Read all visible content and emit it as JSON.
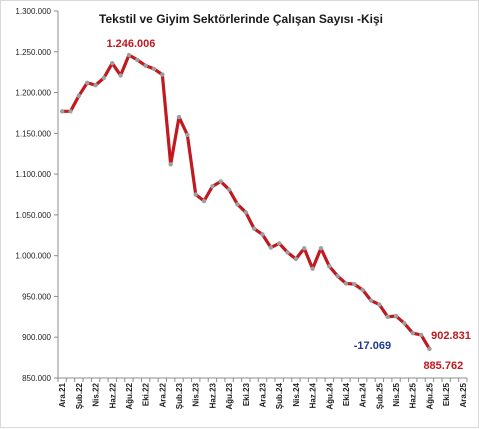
{
  "chart_data": {
    "type": "line",
    "title": "Tekstil ve Giyim Sektörlerinde  Çalışan Sayısı -Kişi",
    "xlabel": "",
    "ylabel": "",
    "ylim": [
      850000,
      1300000
    ],
    "yticks": [
      850000,
      900000,
      950000,
      1000000,
      1050000,
      1100000,
      1150000,
      1200000,
      1250000,
      1300000
    ],
    "ytick_labels": [
      "850.000",
      "900.000",
      "950.000",
      "1.000.000",
      "1.050.000",
      "1.100.000",
      "1.150.000",
      "1.200.000",
      "1.250.000",
      "1.300.000"
    ],
    "x_tick_labels": [
      "Ara.21",
      "Şub.22",
      "Nis.22",
      "Haz.22",
      "Ağu.22",
      "Eki.22",
      "Ara.22",
      "Şub.23",
      "Nis.23",
      "Haz.23",
      "Ağu.23",
      "Eki.23",
      "Ara.23",
      "Şub.24",
      "Nis.24",
      "Haz.24",
      "Ağu.24",
      "Eki.24",
      "Ara.24",
      "Şub.25",
      "Nis.25",
      "Haz.25",
      "Ağu.25",
      "Eki.25",
      "Ara.25"
    ],
    "grid": false,
    "legend": "none",
    "line_color": "#c0191f",
    "marker_color": "#9e9e9e",
    "series": [
      {
        "values": [
          1177000,
          1177000,
          1196000,
          1212000,
          1209000,
          1218000,
          1236000,
          1221000,
          1246006,
          1240000,
          1233000,
          1229000,
          1222000,
          1112000,
          1170000,
          1148000,
          1075000,
          1067000,
          1085000,
          1091000,
          1081000,
          1063000,
          1053000,
          1033000,
          1026000,
          1010000,
          1015000,
          1004000,
          996000,
          1009000,
          984000,
          1009000,
          987000,
          975000,
          966000,
          965000,
          958000,
          945000,
          940000,
          925000,
          926000,
          917000,
          905000,
          902831,
          885762
        ]
      }
    ],
    "annotations": [
      {
        "text": "1.246.006",
        "color": "#c0191f"
      },
      {
        "text": "902.831",
        "color": "#c0191f"
      },
      {
        "text": "-17.069",
        "color": "#1f3a8c"
      },
      {
        "text": "885.762",
        "color": "#c0191f"
      }
    ]
  }
}
